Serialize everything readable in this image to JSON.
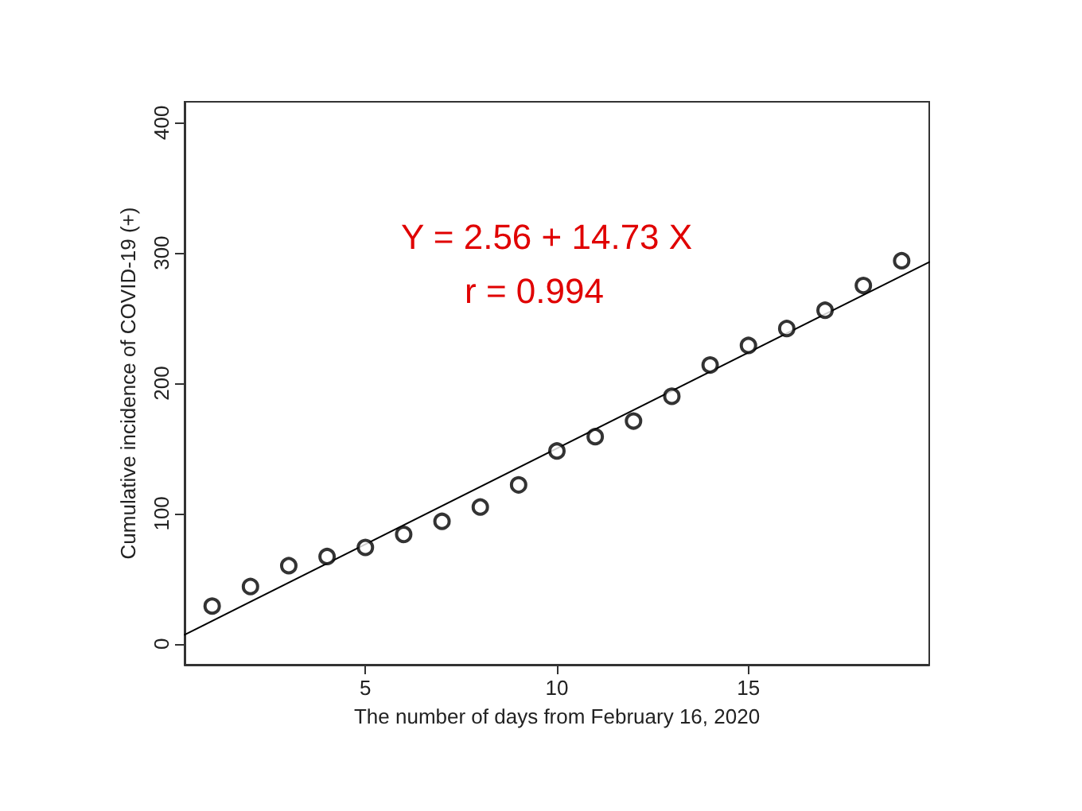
{
  "chart_data": {
    "type": "scatter",
    "xlabel": "The number of days from February 16, 2020",
    "ylabel": "Cumulative incidence of COVID-19 (+)",
    "annotations": [
      "Y = 2.56 + 14.73 X",
      "r = 0.994"
    ],
    "xlim": [
      0.28,
      19.72
    ],
    "xticks": [
      5,
      10,
      15
    ],
    "ylim": [
      -16,
      416
    ],
    "yticks": [
      0,
      100,
      200,
      300,
      400
    ],
    "grid": false,
    "marker": "circle",
    "series": [
      {
        "color": "#000000",
        "x": [
          1,
          2,
          3,
          4,
          5,
          6,
          7,
          8,
          9,
          10,
          11,
          12,
          13,
          14,
          15,
          16,
          17,
          18,
          19
        ],
        "values": [
          29,
          44,
          60,
          67,
          74,
          84,
          94,
          105,
          122,
          148,
          159,
          171,
          190,
          214,
          229,
          242,
          256,
          275,
          294
        ]
      },
      {
        "type": "line",
        "color": "#000000",
        "marker": "none",
        "line_style": "solid",
        "x": [
          0.28,
          19.72
        ],
        "values": [
          7,
          293
        ]
      }
    ]
  }
}
